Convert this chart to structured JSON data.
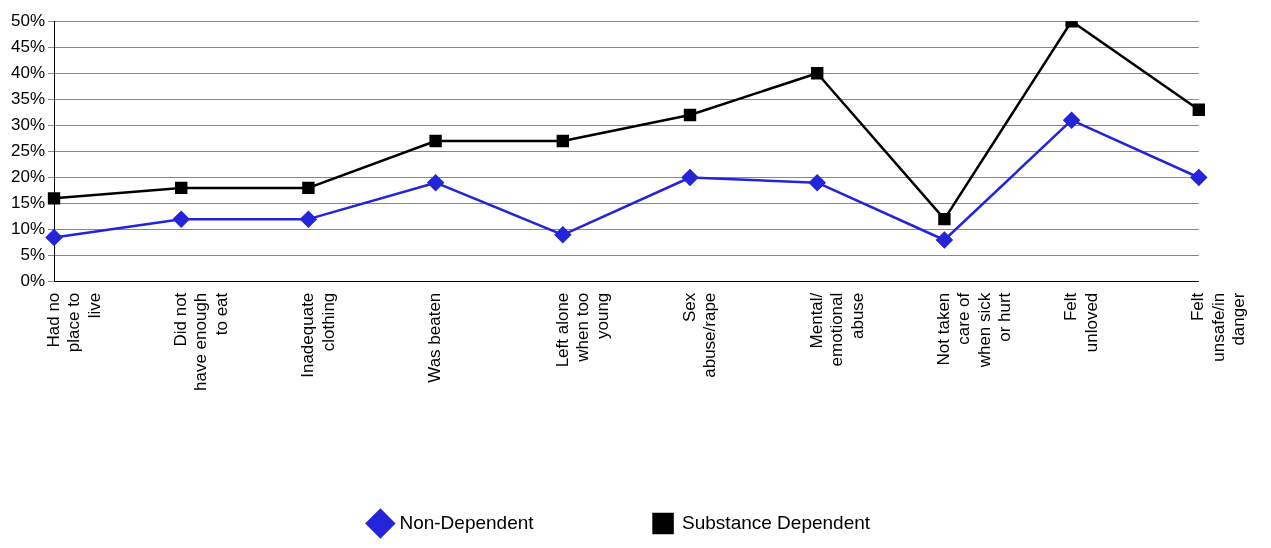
{
  "chart_data": {
    "type": "line",
    "categories": [
      "Had no place to live",
      "Did not have enough to eat",
      "Inadequate clothing",
      "Was beaten",
      "Left alone when too young",
      "Sex abuse/rape",
      "Mental/ emotional abuse",
      "Not taken care of when sick or hurt",
      "Felt unloved",
      "Felt unsafe/in danger"
    ],
    "series": [
      {
        "name": "Non-Dependent",
        "color": "#2424d8",
        "marker": "diamond",
        "values": [
          8.5,
          12,
          12,
          19,
          9,
          20,
          19,
          8,
          31,
          20
        ]
      },
      {
        "name": "Substance Dependent",
        "color": "#000000",
        "marker": "square",
        "values": [
          16,
          18,
          18,
          27,
          27,
          32,
          40,
          12,
          50,
          33
        ]
      }
    ],
    "ylim": [
      0,
      50
    ],
    "yticks": [
      {
        "value": 0,
        "label": "0%"
      },
      {
        "value": 5,
        "label": "5%"
      },
      {
        "value": 10,
        "label": "10%"
      },
      {
        "value": 15,
        "label": "15%"
      },
      {
        "value": 20,
        "label": "20%"
      },
      {
        "value": 25,
        "label": "25%"
      },
      {
        "value": 30,
        "label": "30%"
      },
      {
        "value": 35,
        "label": "35%"
      },
      {
        "value": 40,
        "label": "40%"
      },
      {
        "value": 45,
        "label": "45%"
      },
      {
        "value": 50,
        "label": "50%"
      }
    ],
    "grid": "y",
    "legend": "bottom",
    "line_style": "solid"
  }
}
